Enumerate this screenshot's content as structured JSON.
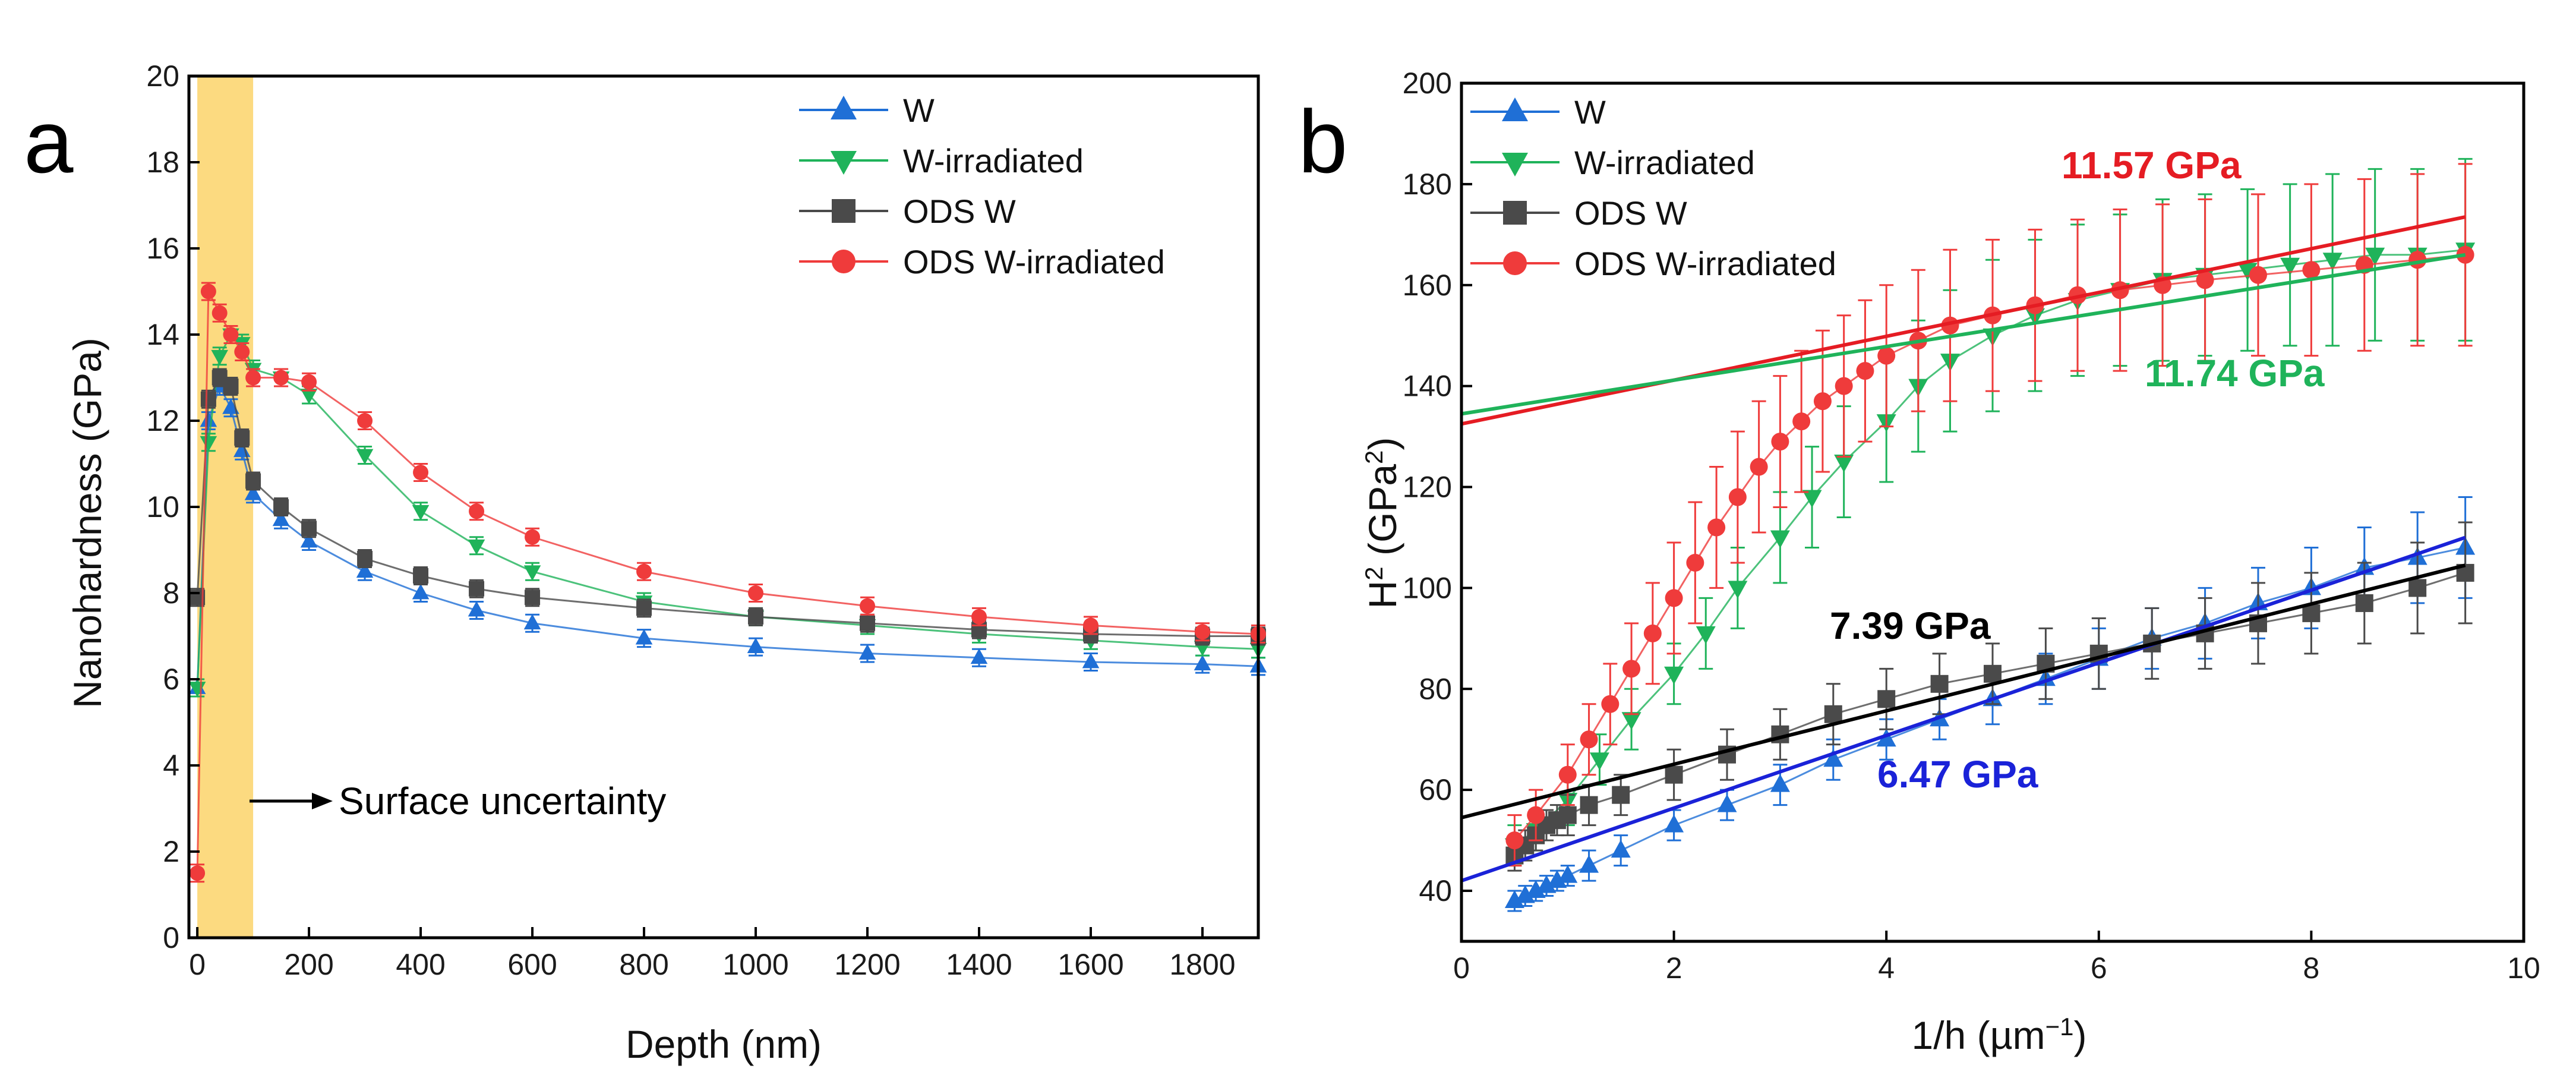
{
  "colors": {
    "W": "#1f6fd6",
    "W-irradiated": "#1fb35a",
    "ODS W": "#4a4a4a",
    "ODS W-irradiated": "#ef3b3b",
    "band": "#fbd46a",
    "fitW": "#1a22d8",
    "fitODS": "#000000",
    "fitRed": "#e51c23",
    "fitGreen": "#1fb35a"
  },
  "chart_data": [
    {
      "type": "scatter",
      "panel_label": "a",
      "xlabel": "Depth (nm)",
      "ylabel": "Nanohardness (GPa)",
      "xlim": [
        -15,
        1900
      ],
      "ylim": [
        0,
        20
      ],
      "xticks": [
        0,
        200,
        400,
        600,
        800,
        1000,
        1200,
        1400,
        1600,
        1800
      ],
      "yticks": [
        0,
        2,
        4,
        6,
        8,
        10,
        12,
        14,
        16,
        18,
        20
      ],
      "legend_position": "top-right",
      "shaded_region": {
        "x_range": [
          0,
          100
        ],
        "label": "Surface uncertainty"
      },
      "series": [
        {
          "name": "W",
          "marker": "triangle-up",
          "x": [
            0,
            20,
            40,
            60,
            80,
            100,
            150,
            200,
            300,
            400,
            500,
            600,
            800,
            1000,
            1200,
            1400,
            1600,
            1800,
            1900
          ],
          "y": [
            5.8,
            12.0,
            12.8,
            12.3,
            11.3,
            10.3,
            9.7,
            9.2,
            8.5,
            8.0,
            7.6,
            7.3,
            6.95,
            6.75,
            6.6,
            6.5,
            6.4,
            6.35,
            6.3
          ]
        },
        {
          "name": "W-irradiated",
          "marker": "triangle-down",
          "x": [
            0,
            20,
            40,
            60,
            80,
            100,
            150,
            200,
            300,
            400,
            500,
            600,
            800,
            1000,
            1200,
            1400,
            1600,
            1800,
            1900
          ],
          "y": [
            5.8,
            11.5,
            13.5,
            14.0,
            13.8,
            13.2,
            13.0,
            12.6,
            11.2,
            9.9,
            9.1,
            8.5,
            7.8,
            7.45,
            7.25,
            7.05,
            6.9,
            6.75,
            6.7
          ]
        },
        {
          "name": "ODS W",
          "marker": "square",
          "x": [
            0,
            20,
            40,
            60,
            80,
            100,
            150,
            200,
            300,
            400,
            500,
            600,
            800,
            1000,
            1200,
            1400,
            1600,
            1800,
            1900
          ],
          "y": [
            7.9,
            12.5,
            13.0,
            12.8,
            11.6,
            10.6,
            10.0,
            9.5,
            8.8,
            8.4,
            8.1,
            7.9,
            7.65,
            7.45,
            7.3,
            7.15,
            7.05,
            7.0,
            7.0
          ]
        },
        {
          "name": "ODS W-irradiated",
          "marker": "circle",
          "x": [
            0,
            20,
            40,
            60,
            80,
            100,
            150,
            200,
            300,
            400,
            500,
            600,
            800,
            1000,
            1200,
            1400,
            1600,
            1800,
            1900
          ],
          "y": [
            1.5,
            15.0,
            14.5,
            14.0,
            13.6,
            13.0,
            13.0,
            12.9,
            12.0,
            10.8,
            9.9,
            9.3,
            8.5,
            8.0,
            7.7,
            7.45,
            7.25,
            7.1,
            7.05
          ]
        }
      ]
    },
    {
      "type": "scatter",
      "panel_label": "b",
      "xlabel": "1/h (µm",
      "xlabel_sup": "−1",
      "xlabel_close": ")",
      "ylabel": "H",
      "ylabel_sup": "2",
      "ylabel_mid": " (GPa",
      "ylabel_sup2": "2",
      "ylabel_close": ")",
      "xlim": [
        0,
        10
      ],
      "ylim": [
        30,
        200
      ],
      "xticks": [
        0,
        2,
        4,
        6,
        8,
        10
      ],
      "yticks": [
        40,
        60,
        80,
        100,
        120,
        140,
        160,
        180,
        200
      ],
      "legend_position": "top-left",
      "series": [
        {
          "name": "W",
          "marker": "triangle-up",
          "x": [
            0.5,
            0.6,
            0.7,
            0.8,
            0.9,
            1.0,
            1.2,
            1.5,
            2.0,
            2.5,
            3.0,
            3.5,
            4.0,
            4.5,
            5.0,
            5.5,
            6.0,
            6.5,
            7.0,
            7.5,
            8.0,
            8.5,
            9.0,
            9.45
          ],
          "y": [
            38,
            39,
            40,
            41,
            42,
            43,
            45,
            48,
            53,
            57,
            61,
            66,
            70,
            74,
            78,
            82,
            86,
            90,
            93,
            97,
            100,
            104,
            106,
            108
          ],
          "error": [
            2,
            2,
            2,
            2,
            2,
            2,
            3,
            3,
            3,
            3,
            4,
            4,
            4,
            4,
            5,
            5,
            6,
            6,
            7,
            7,
            8,
            8,
            9,
            10
          ]
        },
        {
          "name": "W-irradiated",
          "marker": "triangle-down",
          "x": [
            0.5,
            0.7,
            1.0,
            1.3,
            1.6,
            2.0,
            2.3,
            2.6,
            3.0,
            3.3,
            3.6,
            4.0,
            4.3,
            4.6,
            5.0,
            5.4,
            5.8,
            6.2,
            6.6,
            7.0,
            7.4,
            7.8,
            8.2,
            8.6,
            9.0,
            9.45
          ],
          "y": [
            49,
            52,
            58,
            66,
            74,
            83,
            91,
            100,
            110,
            118,
            125,
            133,
            140,
            145,
            150,
            154,
            157,
            159,
            161,
            162,
            163,
            164,
            165,
            166,
            166,
            167
          ],
          "error": [
            4,
            4,
            5,
            5,
            6,
            6,
            7,
            8,
            9,
            10,
            11,
            12,
            13,
            14,
            15,
            15,
            15,
            15,
            16,
            16,
            16,
            16,
            17,
            17,
            17,
            18
          ]
        },
        {
          "name": "ODS W",
          "marker": "square",
          "x": [
            0.5,
            0.6,
            0.7,
            0.8,
            0.9,
            1.0,
            1.2,
            1.5,
            2.0,
            2.5,
            3.0,
            3.5,
            4.0,
            4.5,
            5.0,
            5.5,
            6.0,
            6.5,
            7.0,
            7.5,
            8.0,
            8.5,
            9.0,
            9.45
          ],
          "y": [
            47,
            49,
            51,
            53,
            54,
            55,
            57,
            59,
            63,
            67,
            71,
            75,
            78,
            81,
            83,
            85,
            87,
            89,
            91,
            93,
            95,
            97,
            100,
            103
          ],
          "error": [
            3,
            3,
            3,
            3,
            3,
            4,
            4,
            4,
            5,
            5,
            5,
            6,
            6,
            6,
            6,
            7,
            7,
            7,
            7,
            8,
            8,
            8,
            9,
            10
          ]
        },
        {
          "name": "ODS W-irradiated",
          "marker": "circle",
          "x": [
            0.5,
            0.7,
            1.0,
            1.2,
            1.4,
            1.6,
            1.8,
            2.0,
            2.2,
            2.4,
            2.6,
            2.8,
            3.0,
            3.2,
            3.4,
            3.6,
            3.8,
            4.0,
            4.3,
            4.6,
            5.0,
            5.4,
            5.8,
            6.2,
            6.6,
            7.0,
            7.5,
            8.0,
            8.5,
            9.0,
            9.45
          ],
          "y": [
            50,
            55,
            63,
            70,
            77,
            84,
            91,
            98,
            105,
            112,
            118,
            124,
            129,
            133,
            137,
            140,
            143,
            146,
            149,
            152,
            154,
            156,
            158,
            159,
            160,
            161,
            162,
            163,
            164,
            165,
            166
          ],
          "error": [
            5,
            5,
            6,
            7,
            8,
            9,
            10,
            11,
            12,
            12,
            13,
            13,
            13,
            14,
            14,
            14,
            14,
            14,
            14,
            15,
            15,
            15,
            15,
            16,
            16,
            16,
            16,
            17,
            17,
            17,
            18
          ]
        }
      ],
      "fits": [
        {
          "name": "W fit",
          "label": "6.47 GPa",
          "x": [
            0,
            9.45
          ],
          "y": [
            42.0,
            110.0
          ],
          "color_key": "fitW"
        },
        {
          "name": "ODS W fit",
          "label": "7.39 GPa",
          "x": [
            0,
            9.45
          ],
          "y": [
            54.5,
            104.5
          ],
          "color_key": "fitODS"
        },
        {
          "name": "ODS W-irradiated fit",
          "label": "11.57 GPa",
          "x": [
            0,
            9.45
          ],
          "y": [
            132.5,
            173.5
          ],
          "color_key": "fitRed"
        },
        {
          "name": "W-irradiated fit",
          "label": "11.74 GPa",
          "x": [
            0,
            9.45
          ],
          "y": [
            134.5,
            166.0
          ],
          "color_key": "fitGreen"
        }
      ]
    }
  ]
}
